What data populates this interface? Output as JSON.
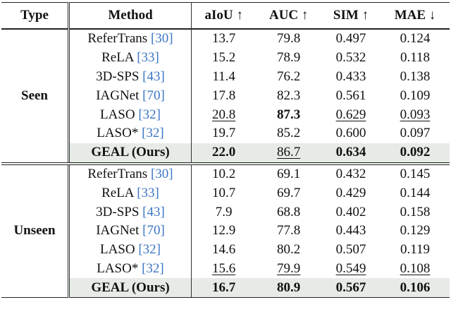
{
  "header": [
    "Type",
    "Method",
    "aIoU ↑",
    "AUC ↑",
    "SIM ↑",
    "MAE ↓"
  ],
  "groups": [
    {
      "type": "Seen",
      "rows": [
        {
          "method": "ReferTrans",
          "cite": "[30]",
          "values": [
            "13.7",
            "79.8",
            "0.497",
            "0.124"
          ]
        },
        {
          "method": "ReLA",
          "cite": "[33]",
          "values": [
            "15.2",
            "78.9",
            "0.532",
            "0.118"
          ]
        },
        {
          "method": "3D-SPS",
          "cite": "[43]",
          "values": [
            "11.4",
            "76.2",
            "0.433",
            "0.138"
          ]
        },
        {
          "method": "IAGNet",
          "cite": "[70]",
          "values": [
            "17.8",
            "82.3",
            "0.561",
            "0.109"
          ]
        },
        {
          "method": "LASO",
          "cite": "[32]",
          "values": [
            "20.8",
            "87.3",
            "0.629",
            "0.093"
          ]
        },
        {
          "method": "LASO*",
          "cite": "[32]",
          "values": [
            "19.7",
            "85.2",
            "0.600",
            "0.097"
          ]
        },
        {
          "method": "GEAL (Ours)",
          "values": [
            "22.0",
            "86.7",
            "0.634",
            "0.092"
          ]
        }
      ]
    },
    {
      "type": "Unseen",
      "rows": [
        {
          "method": "ReferTrans",
          "cite": "[30]",
          "values": [
            "10.2",
            "69.1",
            "0.432",
            "0.145"
          ]
        },
        {
          "method": "ReLA",
          "cite": "[33]",
          "values": [
            "10.7",
            "69.7",
            "0.429",
            "0.144"
          ]
        },
        {
          "method": "3D-SPS",
          "cite": "[43]",
          "values": [
            "7.9",
            "68.8",
            "0.402",
            "0.158"
          ]
        },
        {
          "method": "IAGNet",
          "cite": "[70]",
          "values": [
            "12.9",
            "77.8",
            "0.443",
            "0.129"
          ]
        },
        {
          "method": "LASO",
          "cite": "[32]",
          "values": [
            "14.6",
            "80.2",
            "0.507",
            "0.119"
          ]
        },
        {
          "method": "LASO*",
          "cite": "[32]",
          "values": [
            "15.6",
            "79.9",
            "0.549",
            "0.108"
          ]
        },
        {
          "method": "GEAL (Ours)",
          "values": [
            "16.7",
            "80.9",
            "0.567",
            "0.106"
          ]
        }
      ]
    }
  ]
}
